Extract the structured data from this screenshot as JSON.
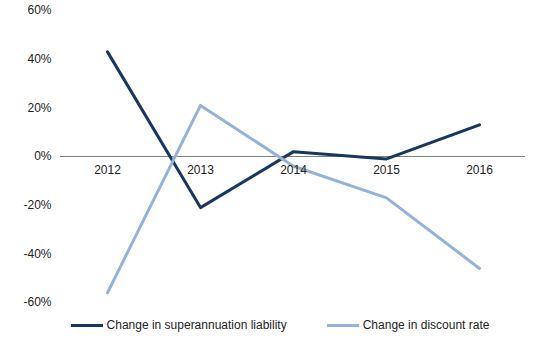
{
  "chart_data": {
    "type": "line",
    "categories": [
      "2012",
      "2013",
      "2014",
      "2015",
      "2016"
    ],
    "series": [
      {
        "name": "Change in superannuation liability",
        "color": "#17375e",
        "values": [
          43,
          -21,
          2,
          -1,
          13
        ]
      },
      {
        "name": "Change in discount rate",
        "color": "#95b3d7",
        "values": [
          -56,
          21,
          -4,
          -17,
          -46
        ]
      }
    ],
    "ylim": [
      -60,
      60
    ],
    "yticks": [
      {
        "value": -60,
        "label": "-60%"
      },
      {
        "value": -40,
        "label": "-40%"
      },
      {
        "value": -20,
        "label": "-20%"
      },
      {
        "value": 0,
        "label": "0%"
      },
      {
        "value": 20,
        "label": "20%"
      },
      {
        "value": 40,
        "label": "40%"
      },
      {
        "value": 60,
        "label": "60%"
      }
    ],
    "grid": false,
    "legend": "bottom"
  }
}
